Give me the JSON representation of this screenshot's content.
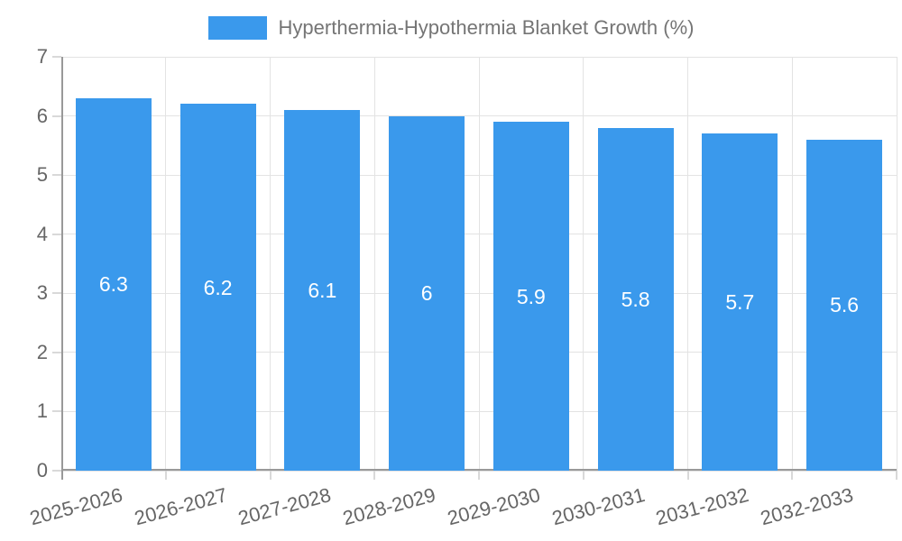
{
  "chart_data": {
    "type": "bar",
    "title": "Hyperthermia-Hypothermia Blanket Growth (%)",
    "categories": [
      "2025-2026",
      "2026-2027",
      "2027-2028",
      "2028-2029",
      "2029-2030",
      "2030-2031",
      "2031-2032",
      "2032-2033"
    ],
    "values": [
      6.3,
      6.2,
      6.1,
      6,
      5.9,
      5.8,
      5.7,
      5.6
    ],
    "bar_labels": [
      "6.3",
      "6.2",
      "6.1",
      "6",
      "5.9",
      "5.8",
      "5.7",
      "5.6"
    ],
    "xlabel": "",
    "ylabel": "",
    "ylim": [
      0,
      7
    ],
    "y_ticks": [
      0,
      1,
      2,
      3,
      4,
      5,
      6,
      7
    ],
    "grid": true,
    "x_label_rotation_deg": -15,
    "legend": {
      "position": "top",
      "label": "Hyperthermia-Hypothermia Blanket Growth (%)"
    },
    "colors": {
      "background": "#ffffff",
      "bar": "#3a99ec",
      "grid": "#e3e3e3",
      "tick": "#d9d9d9",
      "axis": "#999999",
      "text": "#666666",
      "legend_text": "#757575",
      "bar_label": "#ffffff"
    }
  }
}
